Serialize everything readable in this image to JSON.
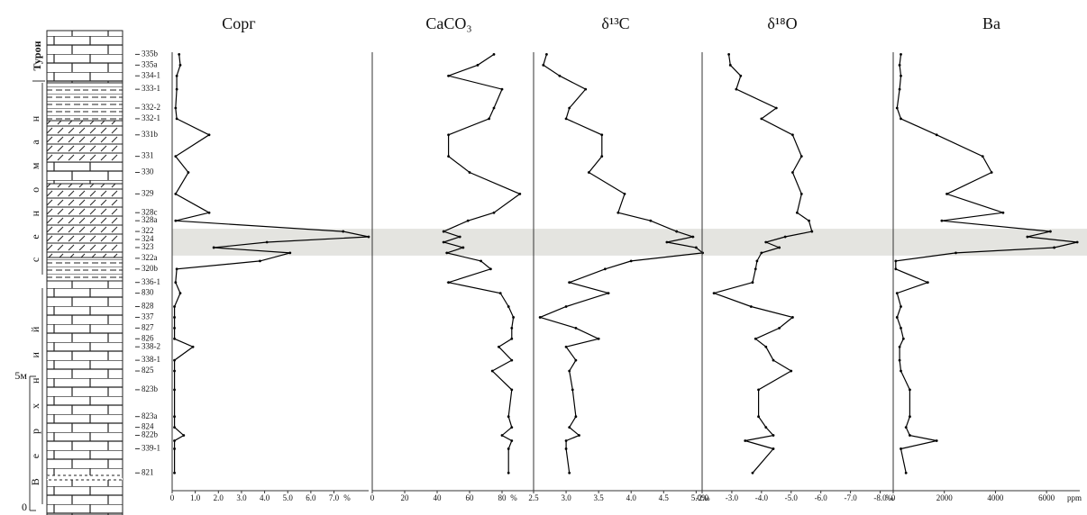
{
  "chart_data": [
    {
      "type": "line",
      "title": "Сорг",
      "unit": "%",
      "color": "#000000",
      "values": [
        0.3,
        0.35,
        0.2,
        0.2,
        0.15,
        0.2,
        1.6,
        0.15,
        0.7,
        0.15,
        1.6,
        0.15,
        7.4,
        8.5,
        4.1,
        1.8,
        5.1,
        3.8,
        0.2,
        0.15,
        0.35,
        0.1,
        0.1,
        0.1,
        0.1,
        0.9,
        0.1,
        0.1,
        0.1,
        0.1,
        0.1,
        0.5,
        0.1,
        0.1,
        0.1
      ],
      "y": [
        17.0,
        16.6,
        16.2,
        15.7,
        15.0,
        14.6,
        14.0,
        13.2,
        12.6,
        11.8,
        11.1,
        10.8,
        10.4,
        10.2,
        10.0,
        9.8,
        9.6,
        9.3,
        9.0,
        8.5,
        8.1,
        7.6,
        7.2,
        6.8,
        6.4,
        6.1,
        5.6,
        5.2,
        4.5,
        3.5,
        3.1,
        2.8,
        2.6,
        2.3,
        1.4
      ],
      "xlim": [
        0,
        8.5
      ],
      "xticks": [
        0,
        {
          "value": 1,
          "label": "1.0"
        },
        {
          "value": 2,
          "label": "2.0"
        },
        {
          "value": 3,
          "label": "3.0"
        },
        {
          "value": 4,
          "label": "4.0"
        },
        {
          "value": 5,
          "label": "5.0"
        },
        {
          "value": 6,
          "label": "6.0"
        },
        {
          "value": 7,
          "label": "7.0"
        }
      ]
    },
    {
      "type": "line",
      "title": "CaCO₃",
      "unit": "%",
      "color": "#000000",
      "values": [
        75,
        65,
        47,
        80,
        75,
        72,
        47,
        47,
        60,
        91,
        75,
        59,
        44,
        54,
        44,
        56,
        46,
        67,
        73,
        47,
        79,
        84,
        87,
        86,
        86,
        78,
        86,
        74,
        86,
        84,
        86,
        80,
        86,
        84,
        84
      ],
      "y": [
        17.0,
        16.6,
        16.2,
        15.7,
        15.0,
        14.6,
        14.0,
        13.2,
        12.6,
        11.8,
        11.1,
        10.8,
        10.4,
        10.2,
        10.0,
        9.8,
        9.6,
        9.3,
        9.0,
        8.5,
        8.1,
        7.6,
        7.2,
        6.8,
        6.4,
        6.1,
        5.6,
        5.2,
        4.5,
        3.5,
        3.1,
        2.8,
        2.6,
        2.3,
        1.4
      ],
      "xlim": [
        0,
        100
      ],
      "xticks": [
        0,
        20,
        40,
        60,
        80
      ]
    },
    {
      "type": "line",
      "title": "δ¹³C",
      "unit": "‰",
      "color": "#000000",
      "values": [
        2.7,
        2.65,
        2.9,
        3.3,
        3.05,
        3.0,
        3.55,
        3.55,
        3.35,
        3.9,
        3.8,
        4.3,
        4.7,
        4.95,
        4.55,
        5.0,
        5.1,
        4.0,
        3.6,
        3.05,
        3.65,
        3.0,
        2.6,
        3.15,
        3.5,
        3.0,
        3.15,
        3.05,
        3.1,
        3.15,
        3.05,
        3.2,
        3.0,
        3.0,
        3.05
      ],
      "y": [
        17.0,
        16.6,
        16.2,
        15.7,
        15.0,
        14.6,
        14.0,
        13.2,
        12.6,
        11.8,
        11.1,
        10.8,
        10.4,
        10.2,
        10.0,
        9.8,
        9.6,
        9.3,
        9.0,
        8.5,
        8.1,
        7.6,
        7.2,
        6.8,
        6.4,
        6.1,
        5.6,
        5.2,
        4.5,
        3.5,
        3.1,
        2.8,
        2.6,
        2.3,
        1.4
      ],
      "xlim": [
        2.5,
        5.3
      ],
      "xticks": [
        2.5,
        {
          "value": 3,
          "label": "3.0"
        },
        3.5,
        {
          "value": 4,
          "label": "4.0"
        },
        4.5,
        {
          "value": 5,
          "label": "5.0"
        }
      ]
    },
    {
      "type": "line",
      "title": "δ¹⁸O",
      "unit": "‰",
      "color": "#000000",
      "values": [
        -2.9,
        -2.95,
        -3.3,
        -3.15,
        -4.5,
        -4.0,
        -5.05,
        -5.35,
        -5.05,
        -5.35,
        -5.2,
        -5.6,
        -5.7,
        -4.8,
        -4.15,
        -4.6,
        -4.0,
        -3.85,
        -3.8,
        -3.7,
        -2.4,
        -3.65,
        -5.05,
        -4.6,
        -3.8,
        -4.15,
        -4.4,
        -5.0,
        -3.9,
        -3.9,
        -4.15,
        -4.4,
        -3.45,
        -4.4,
        -3.7
      ],
      "y": [
        17.0,
        16.6,
        16.2,
        15.7,
        15.0,
        14.6,
        14.0,
        13.2,
        12.6,
        11.8,
        11.1,
        10.8,
        10.4,
        10.2,
        10.0,
        9.8,
        9.6,
        9.3,
        9.0,
        8.5,
        8.1,
        7.6,
        7.2,
        6.8,
        6.4,
        6.1,
        5.6,
        5.2,
        4.5,
        3.5,
        3.1,
        2.8,
        2.6,
        2.3,
        1.4
      ],
      "xlim": [
        -2,
        -8.5
      ],
      "xticks": [
        {
          "value": -2,
          "label": "-2.0"
        },
        {
          "value": -3,
          "label": "-3.0"
        },
        {
          "value": -4,
          "label": "-4.0"
        },
        {
          "value": -5,
          "label": "-5.0"
        },
        {
          "value": -6,
          "label": "-6.0"
        },
        {
          "value": -7,
          "label": "-7.0"
        },
        {
          "value": -8,
          "label": "-8.0"
        }
      ]
    },
    {
      "type": "line",
      "title": "Ba",
      "unit": "ppm",
      "color": "#000000",
      "values": [
        300,
        250,
        300,
        250,
        150,
        300,
        1700,
        3500,
        3850,
        2100,
        4300,
        1900,
        6150,
        5250,
        7200,
        6300,
        2450,
        100,
        100,
        1350,
        150,
        300,
        150,
        300,
        400,
        250,
        250,
        300,
        650,
        650,
        500,
        650,
        1700,
        300,
        500
      ],
      "y": [
        17.0,
        16.6,
        16.2,
        15.7,
        15.0,
        14.6,
        14.0,
        13.2,
        12.6,
        11.8,
        11.1,
        10.8,
        10.4,
        10.2,
        10.0,
        9.8,
        9.6,
        9.3,
        9.0,
        8.5,
        8.1,
        7.6,
        7.2,
        6.8,
        6.4,
        6.1,
        5.6,
        5.2,
        4.5,
        3.5,
        3.1,
        2.8,
        2.6,
        2.3,
        1.4
      ],
      "xlim": [
        0,
        7300
      ],
      "xticks": [
        0,
        2000,
        4000,
        6000
      ]
    }
  ],
  "depth_axis": {
    "ylim": [
      0,
      17.5
    ],
    "yticks": [
      0,
      {
        "value": 5,
        "label": "5м"
      }
    ]
  },
  "highlight": [
    9.5,
    10.5
  ],
  "samples": {
    "labels": [
      "335b",
      "335a",
      "334-1",
      "333-1",
      "332-2",
      "332-1",
      "331b",
      "331",
      "330",
      "329",
      "328c",
      "328a",
      "322",
      "324",
      "323",
      "322a",
      "320b",
      "336-1",
      "830",
      "828",
      "337",
      "827",
      "826",
      "338-2",
      "338-1",
      "825",
      "823b",
      "823a",
      "824",
      "822b",
      "339-1",
      "821"
    ],
    "depth": [
      17.0,
      16.6,
      16.2,
      15.7,
      15.0,
      14.6,
      14.0,
      13.2,
      12.6,
      11.8,
      11.1,
      10.8,
      10.4,
      10.1,
      9.8,
      9.4,
      9.0,
      8.5,
      8.1,
      7.6,
      7.2,
      6.8,
      6.4,
      6.1,
      5.6,
      5.2,
      4.5,
      3.5,
      3.1,
      2.8,
      2.3,
      1.4
    ]
  },
  "stratigraphy": {
    "turonian": "Турон",
    "cenomanian": "сеноман",
    "upper": "Верхний"
  }
}
